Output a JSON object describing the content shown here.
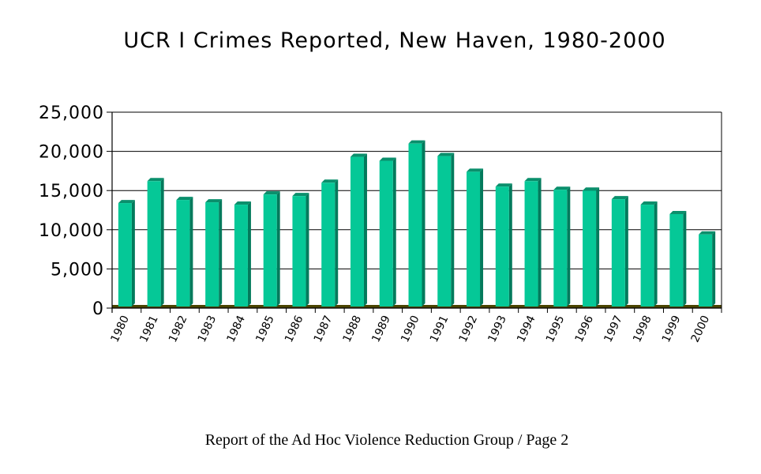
{
  "page": {
    "title": "UCR I Crimes Reported, New Haven, 1980-2000",
    "footer": "Report of the Ad Hoc Violence Reduction Group / Page 2"
  },
  "colors": {
    "bar_front": "#05c897",
    "bar_side": "#037a5c",
    "bar_top": "#0a8f6c",
    "floor": "#4a4400"
  },
  "chart_data": {
    "type": "bar",
    "title": "UCR I Crimes Reported, New Haven, 1980-2000",
    "xlabel": "",
    "ylabel": "",
    "categories": [
      "1980",
      "1981",
      "1982",
      "1983",
      "1984",
      "1985",
      "1986",
      "1987",
      "1988",
      "1989",
      "1990",
      "1991",
      "1992",
      "1993",
      "1994",
      "1995",
      "1996",
      "1997",
      "1998",
      "1999",
      "2000"
    ],
    "values": [
      13400,
      16200,
      13800,
      13500,
      13200,
      14500,
      14300,
      16000,
      19300,
      18800,
      21000,
      19400,
      17400,
      15500,
      16200,
      15100,
      15000,
      13900,
      13200,
      12000,
      9400
    ],
    "yticks": [
      "0",
      "5,000",
      "10,000",
      "15,000",
      "20,000",
      "25,000"
    ],
    "ylim": [
      0,
      25000
    ],
    "grid": true,
    "legend": "none"
  }
}
